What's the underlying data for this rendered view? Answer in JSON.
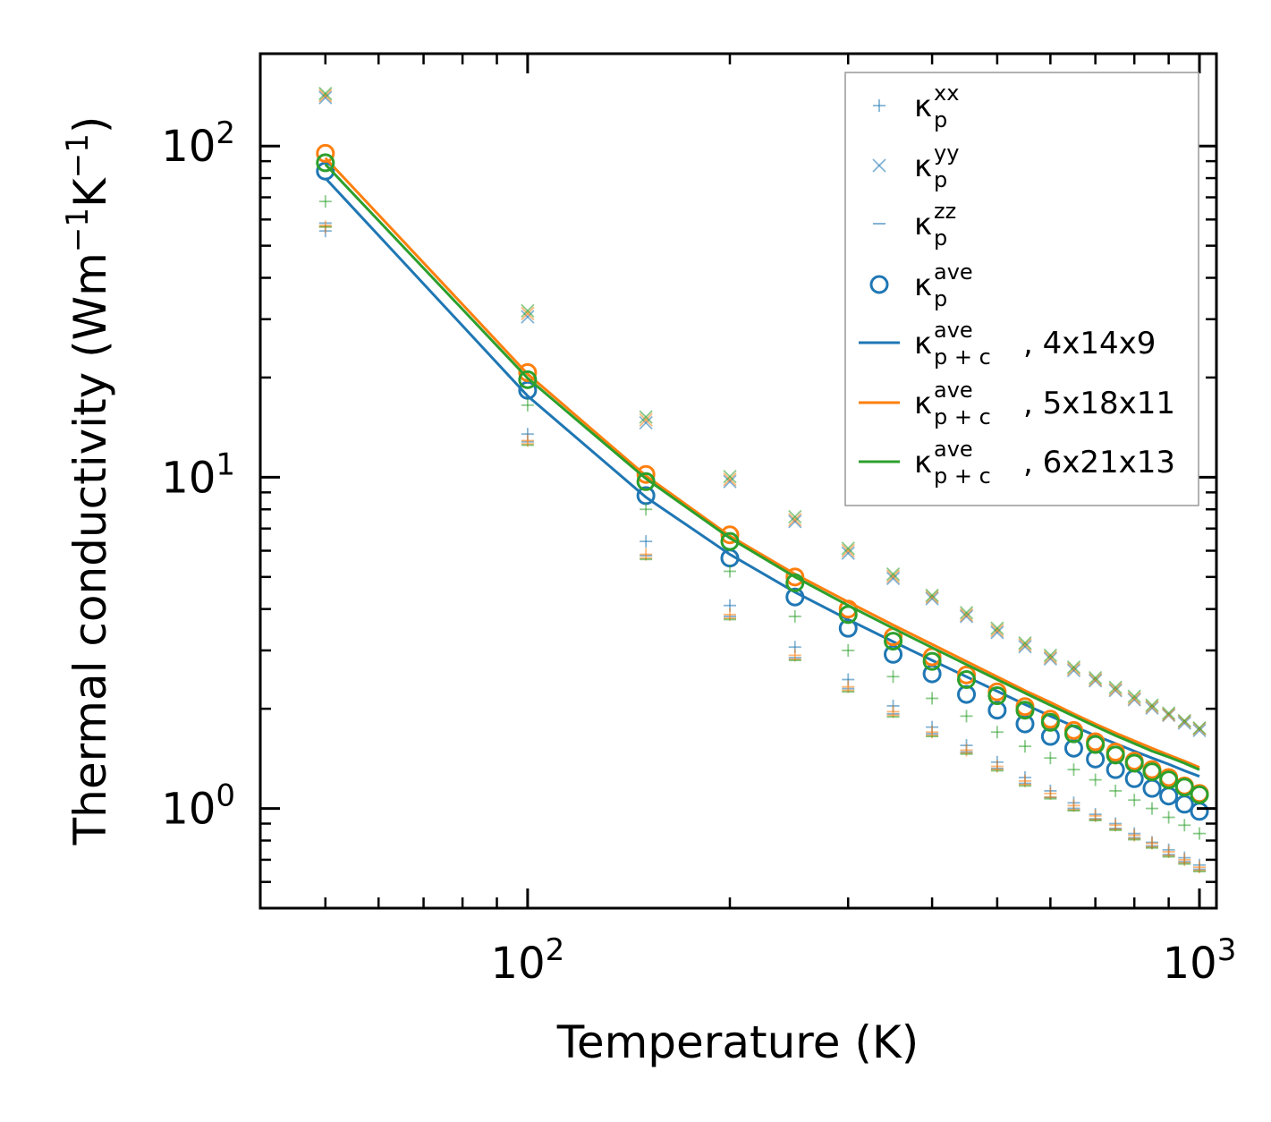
{
  "chart_data": {
    "type": "scatter",
    "xscale": "log",
    "yscale": "log",
    "xlim": [
      40,
      1060
    ],
    "ylim": [
      0.5,
      190
    ],
    "xlabel": "Temperature (K)",
    "ylabel": {
      "main": "Thermal conductivity (Wm",
      "exp1": "−1",
      "mid": "K",
      "exp2": "−1",
      "end": ")"
    },
    "x_ticks": [
      {
        "value": 100,
        "base": "10",
        "exp": "2"
      },
      {
        "value": 1000,
        "base": "10",
        "exp": "3"
      }
    ],
    "y_ticks": [
      {
        "value": 1,
        "base": "10",
        "exp": "0"
      },
      {
        "value": 10,
        "base": "10",
        "exp": "1"
      },
      {
        "value": 100,
        "base": "10",
        "exp": "2"
      }
    ],
    "temperatures": [
      50,
      100,
      150,
      200,
      250,
      300,
      350,
      400,
      450,
      500,
      550,
      600,
      650,
      700,
      750,
      800,
      850,
      900,
      950,
      1000
    ],
    "colors": {
      "c1": "#1f77b4",
      "c2": "#ff7f0e",
      "c3": "#2ca02c"
    },
    "series": [
      {
        "name": "4x14x9",
        "color": "#1f77b4",
        "kxx": [
          55.4,
          13.5,
          6.4,
          4.1,
          3.07,
          2.45,
          2.04,
          1.76,
          1.55,
          1.38,
          1.24,
          1.13,
          1.04,
          0.96,
          0.9,
          0.84,
          0.79,
          0.75,
          0.71,
          0.675
        ],
        "kyy": [
          140,
          30.5,
          14.6,
          9.7,
          7.35,
          5.9,
          4.95,
          4.3,
          3.8,
          3.4,
          3.08,
          2.83,
          2.61,
          2.43,
          2.27,
          2.13,
          2.01,
          1.91,
          1.81,
          1.72
        ],
        "kzz": [
          58.5,
          12.8,
          5.8,
          3.8,
          2.85,
          2.3,
          1.93,
          1.68,
          1.48,
          1.32,
          1.19,
          1.08,
          1.0,
          0.93,
          0.87,
          0.815,
          0.77,
          0.725,
          0.69,
          0.655
        ],
        "kave": [
          84,
          18.3,
          8.8,
          5.7,
          4.35,
          3.5,
          2.92,
          2.55,
          2.21,
          1.98,
          1.8,
          1.65,
          1.52,
          1.41,
          1.31,
          1.23,
          1.15,
          1.09,
          1.03,
          0.98
        ],
        "kpc": [
          80,
          17.6,
          8.7,
          5.85,
          4.5,
          3.72,
          3.19,
          2.8,
          2.5,
          2.26,
          2.06,
          1.9,
          1.77,
          1.66,
          1.57,
          1.49,
          1.42,
          1.36,
          1.3,
          1.25
        ]
      },
      {
        "name": "5x18x11",
        "color": "#ff7f0e",
        "kxx": [
          57,
          12.9,
          5.85,
          3.85,
          2.9,
          2.33,
          1.96,
          1.7,
          1.5,
          1.34,
          1.21,
          1.11,
          1.02,
          0.95,
          0.89,
          0.83,
          0.785,
          0.74,
          0.7,
          0.665
        ],
        "kyy": [
          142,
          31.2,
          14.9,
          9.85,
          7.45,
          6.0,
          5.02,
          4.35,
          3.84,
          3.45,
          3.12,
          2.86,
          2.64,
          2.45,
          2.29,
          2.15,
          2.03,
          1.92,
          1.83,
          1.74
        ],
        "kzz": [
          57.5,
          12.6,
          5.7,
          3.75,
          2.82,
          2.27,
          1.91,
          1.66,
          1.47,
          1.31,
          1.18,
          1.08,
          0.99,
          0.925,
          0.865,
          0.81,
          0.765,
          0.72,
          0.685,
          0.65
        ],
        "kave": [
          95,
          20.7,
          10.2,
          6.7,
          5.0,
          4.0,
          3.3,
          2.87,
          2.53,
          2.25,
          2.03,
          1.86,
          1.72,
          1.59,
          1.48,
          1.39,
          1.31,
          1.24,
          1.17,
          1.11
        ],
        "kpc": [
          92,
          20.5,
          10.1,
          6.65,
          5.1,
          4.2,
          3.58,
          3.13,
          2.78,
          2.5,
          2.27,
          2.09,
          1.93,
          1.8,
          1.69,
          1.6,
          1.52,
          1.45,
          1.39,
          1.33
        ]
      },
      {
        "name": "6x21x13",
        "color": "#2ca02c",
        "kxx": [
          68,
          16.5,
          8.0,
          5.2,
          3.8,
          3.0,
          2.5,
          2.15,
          1.9,
          1.7,
          1.54,
          1.42,
          1.31,
          1.22,
          1.13,
          1.06,
          1.0,
          0.94,
          0.89,
          0.84
        ],
        "kyy": [
          144,
          31.8,
          15.2,
          10.05,
          7.6,
          6.1,
          5.1,
          4.4,
          3.9,
          3.5,
          3.16,
          2.9,
          2.67,
          2.48,
          2.32,
          2.18,
          2.05,
          1.94,
          1.84,
          1.75
        ],
        "kzz": [
          57,
          12.5,
          5.65,
          3.72,
          2.8,
          2.25,
          1.89,
          1.65,
          1.46,
          1.3,
          1.17,
          1.07,
          0.985,
          0.92,
          0.86,
          0.805,
          0.76,
          0.715,
          0.68,
          0.645
        ],
        "kave": [
          89,
          19.7,
          9.7,
          6.4,
          4.8,
          3.85,
          3.2,
          2.78,
          2.45,
          2.19,
          1.98,
          1.82,
          1.68,
          1.56,
          1.45,
          1.37,
          1.29,
          1.22,
          1.16,
          1.1
        ],
        "kpc": [
          88,
          19.9,
          9.9,
          6.55,
          5.0,
          4.1,
          3.5,
          3.06,
          2.72,
          2.45,
          2.23,
          2.05,
          1.9,
          1.77,
          1.66,
          1.57,
          1.49,
          1.43,
          1.37,
          1.31
        ]
      }
    ],
    "legend": {
      "position": "top-right",
      "entries": [
        {
          "marker": "plus",
          "symbol": "κ",
          "sub": "p",
          "sup": "xx",
          "suffix": ""
        },
        {
          "marker": "x",
          "symbol": "κ",
          "sub": "p",
          "sup": "yy",
          "suffix": ""
        },
        {
          "marker": "dash",
          "symbol": "κ",
          "sub": "p",
          "sup": "zz",
          "suffix": ""
        },
        {
          "marker": "circle",
          "symbol": "κ",
          "sub": "p",
          "sup": "ave",
          "suffix": ""
        },
        {
          "marker": "line",
          "symbol": "κ",
          "sub": "p + c",
          "sup": "ave",
          "suffix": ", 4x14x9"
        },
        {
          "marker": "line",
          "symbol": "κ",
          "sub": "p + c",
          "sup": "ave",
          "suffix": ", 5x18x11"
        },
        {
          "marker": "line",
          "symbol": "κ",
          "sub": "p + c",
          "sup": "ave",
          "suffix": ", 6x21x13"
        }
      ]
    }
  }
}
